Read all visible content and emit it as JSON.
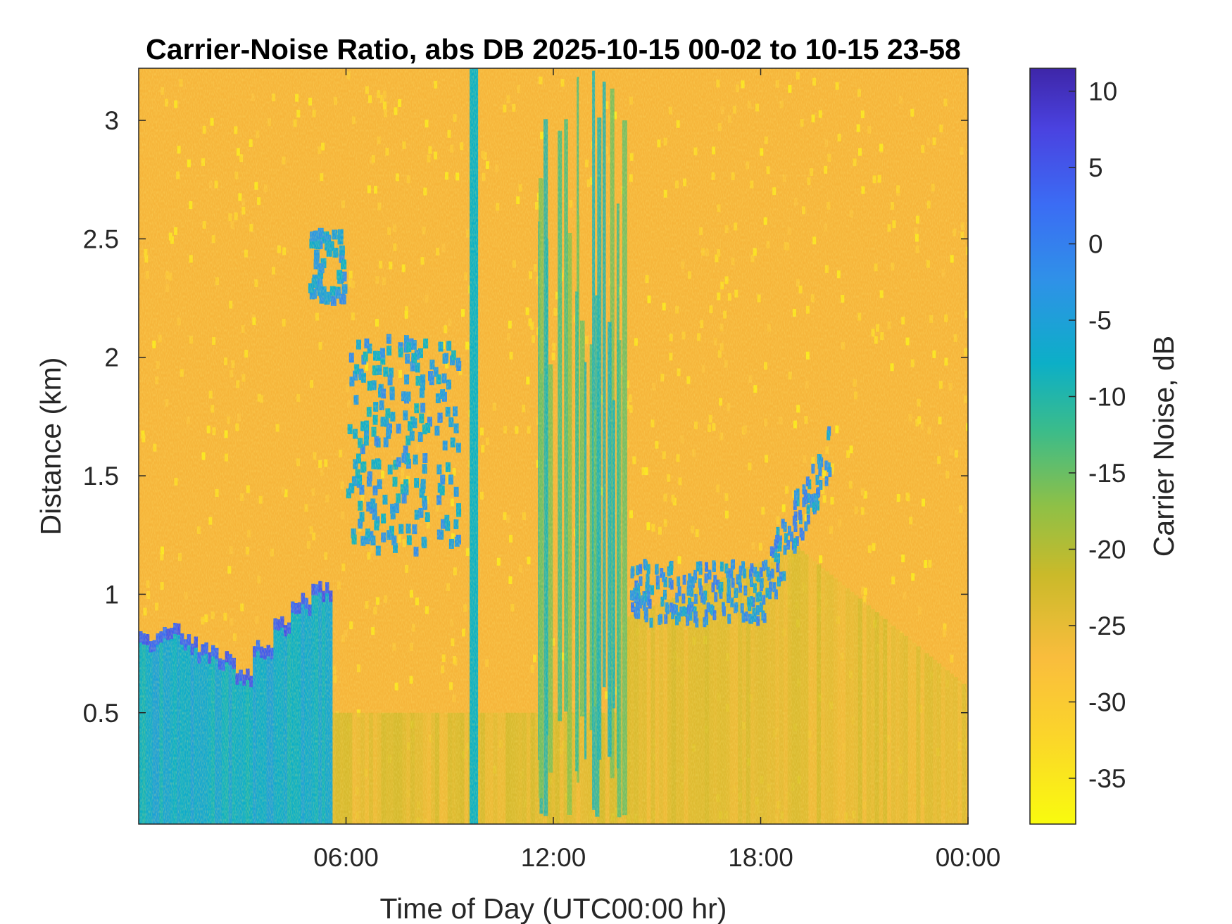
{
  "chart_data": {
    "type": "heatmap",
    "title": "Carrier-Noise Ratio, abs DB 2025-10-15 00-02 to 10-15 23-58",
    "xlabel": "Time of Day (UTC00:00 hr)",
    "ylabel": "Distance (km)",
    "colorbar_label": "Carrier Noise, dB",
    "xlim_hours": [
      0,
      24
    ],
    "ylim_km": [
      0.03,
      3.22
    ],
    "clim_db": [
      -38,
      11.5
    ],
    "colormap": "parula (reversed)",
    "x_ticks": [
      "06:00",
      "12:00",
      "18:00",
      "00:00"
    ],
    "y_ticks": [
      "3",
      "2.5",
      "2",
      "1.5",
      "1",
      "0.5"
    ],
    "colorbar_ticks": [
      "10",
      "5",
      "0",
      "-5",
      "-10",
      "-15",
      "-20",
      "-25",
      "-30",
      "-35"
    ],
    "background_db": -31,
    "features": [
      {
        "name": "early-morning boundary layer aerosol",
        "t_start": 0.0,
        "t_end": 5.5,
        "top_km": [
          0.8,
          0.82,
          0.78,
          0.75,
          0.72,
          0.65,
          0.75,
          0.85,
          0.95,
          1.0
        ],
        "db": -9
      },
      {
        "name": "elevated layer near 2.4 km",
        "t_start": 4.9,
        "t_end": 5.9,
        "bottom_km": 2.25,
        "top_km": 2.55,
        "db": -4
      },
      {
        "name": "clouds 1.3-2.1 km",
        "t_start": 6.0,
        "t_end": 9.2,
        "bottom_km": 1.2,
        "top_km": 2.1,
        "db": -5
      },
      {
        "name": "vertical artifact",
        "time_hr": 9.7,
        "db": -8
      },
      {
        "name": "convective plumes",
        "t_start": 11.5,
        "t_end": 14.0,
        "bottom_km": 0.03,
        "top_km": 3.22,
        "db": -13
      },
      {
        "name": "afternoon cloud deck near 1 km",
        "t_start": 14.2,
        "t_end": 20.0,
        "bottom_km": 0.9,
        "top_km": 1.8,
        "db": -3
      },
      {
        "name": "mixed layer",
        "t_start": 14.0,
        "t_end": 24.0,
        "bottom_km": 0.03,
        "top_km": 1.2,
        "db": -24
      }
    ]
  }
}
